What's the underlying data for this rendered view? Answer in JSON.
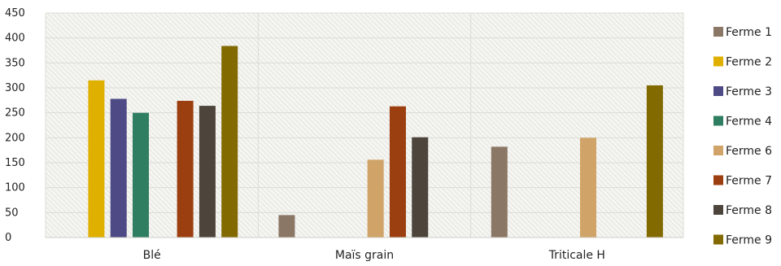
{
  "chart_data": {
    "type": "bar",
    "categories": [
      "Blé",
      "Maïs grain",
      "Triticale H"
    ],
    "ylim": [
      0,
      450
    ],
    "yticks": [
      0,
      50,
      100,
      150,
      200,
      250,
      300,
      350,
      400,
      450
    ],
    "grid": true,
    "legend_position": "right",
    "series": [
      {
        "name": "Ferme 1",
        "color": "#8b7765",
        "values": [
          null,
          45,
          182
        ]
      },
      {
        "name": "Ferme 2",
        "color": "#e0b000",
        "values": [
          315,
          null,
          null
        ]
      },
      {
        "name": "Ferme 3",
        "color": "#4e4a85",
        "values": [
          278,
          null,
          null
        ]
      },
      {
        "name": "Ferme 4",
        "color": "#2f7e61",
        "values": [
          250,
          null,
          null
        ]
      },
      {
        "name": "Ferme 6",
        "color": "#d0a468",
        "values": [
          null,
          156,
          200
        ]
      },
      {
        "name": "Ferme 7",
        "color": "#9c3f10",
        "values": [
          274,
          263,
          null
        ]
      },
      {
        "name": "Ferme 8",
        "color": "#4d443b",
        "values": [
          264,
          201,
          null
        ]
      },
      {
        "name": "Ferme 9",
        "color": "#826a00",
        "values": [
          384,
          null,
          305
        ]
      }
    ]
  }
}
